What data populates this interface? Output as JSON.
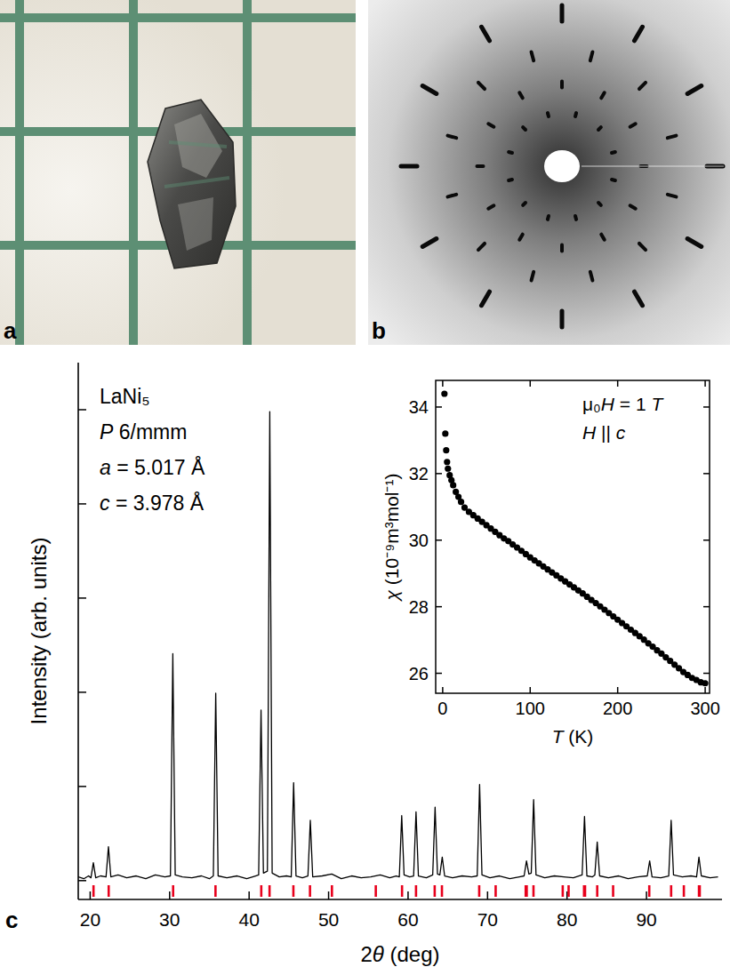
{
  "panels": [
    {
      "label": "a"
    },
    {
      "label": "b"
    }
  ],
  "chart_data": [
    {
      "type": "line",
      "panel_label": "c",
      "x_label": "2θ (deg)",
      "y_label": "Intensity (arb. units)",
      "annotations": [
        "LaNi₅",
        "P 6/mmm",
        "a = 5.017 Å",
        "c = 3.978 Å"
      ],
      "xlim": [
        18.5,
        99.5
      ],
      "xticks": [
        20,
        30,
        40,
        50,
        60,
        70,
        80,
        90
      ],
      "ylim": [
        -0.2,
        5.5
      ],
      "yticks": [
        0,
        1,
        2,
        3,
        4,
        5
      ],
      "tick_labels": "x",
      "series": [
        {
          "type": "line",
          "color": "#000000",
          "x": [
            18.5,
            19.2,
            19.8,
            20.1,
            20.4,
            20.7,
            21.3,
            22.0,
            22.3,
            22.6,
            23.5,
            24.6,
            25.8,
            27.0,
            28.2,
            29.4,
            30.1,
            30.4,
            30.7,
            31.6,
            32.8,
            34.0,
            35.0,
            35.5,
            35.8,
            36.1,
            37.2,
            38.5,
            39.7,
            40.8,
            41.2,
            41.5,
            41.8,
            42.3,
            42.6,
            42.9,
            43.8,
            44.7,
            45.3,
            45.6,
            45.9,
            46.7,
            47.4,
            47.7,
            48.0,
            49.2,
            50.4,
            51.6,
            52.9,
            54.1,
            55.3,
            56.5,
            57.7,
            58.5,
            58.9,
            59.2,
            59.5,
            60.2,
            60.7,
            61.0,
            61.3,
            62.3,
            63.1,
            63.4,
            63.7,
            64.0,
            64.3,
            64.6,
            65.6,
            66.8,
            68.0,
            68.7,
            69.0,
            69.3,
            70.3,
            71.5,
            72.8,
            74.0,
            74.6,
            74.9,
            75.2,
            75.5,
            75.8,
            76.1,
            77.2,
            78.4,
            79.6,
            80.8,
            81.9,
            82.2,
            82.5,
            83.2,
            83.5,
            83.8,
            84.1,
            85.2,
            86.5,
            87.7,
            88.9,
            90.1,
            90.4,
            90.7,
            91.8,
            92.8,
            93.1,
            93.4,
            94.5,
            95.6,
            96.3,
            96.6,
            96.9,
            98.0,
            99.0
          ],
          "values": [
            0.04,
            0.02,
            0.05,
            0.03,
            0.19,
            0.03,
            0.05,
            0.04,
            0.36,
            0.04,
            0.06,
            0.03,
            0.05,
            0.02,
            0.06,
            0.04,
            0.05,
            2.41,
            0.06,
            0.04,
            0.03,
            0.05,
            0.02,
            0.05,
            1.99,
            0.05,
            0.03,
            0.05,
            0.02,
            0.05,
            0.06,
            1.81,
            0.08,
            0.1,
            4.98,
            0.08,
            0.04,
            0.05,
            0.04,
            1.04,
            0.05,
            0.03,
            0.05,
            0.64,
            0.04,
            0.05,
            0.07,
            0.02,
            0.05,
            0.03,
            0.04,
            0.06,
            0.03,
            0.05,
            0.04,
            0.69,
            0.06,
            0.04,
            0.05,
            0.73,
            0.05,
            0.03,
            0.06,
            0.78,
            0.07,
            0.06,
            0.25,
            0.05,
            0.03,
            0.05,
            0.04,
            0.05,
            1.02,
            0.06,
            0.03,
            0.05,
            0.02,
            0.04,
            0.05,
            0.21,
            0.07,
            0.08,
            0.86,
            0.06,
            0.03,
            0.05,
            0.04,
            0.03,
            0.06,
            0.68,
            0.05,
            0.04,
            0.06,
            0.41,
            0.05,
            0.03,
            0.05,
            0.02,
            0.04,
            0.05,
            0.21,
            0.04,
            0.03,
            0.05,
            0.64,
            0.06,
            0.04,
            0.05,
            0.04,
            0.25,
            0.05,
            0.03,
            0.04
          ]
        }
      ],
      "reflections": {
        "color": "#e8001c",
        "marker": "tick",
        "x": [
          20.42,
          22.33,
          30.44,
          35.77,
          41.53,
          42.57,
          45.57,
          47.66,
          50.42,
          55.94,
          59.24,
          61.0,
          63.35,
          64.26,
          68.95,
          71.02,
          74.8,
          74.93,
          75.78,
          79.46,
          80.2,
          82.14,
          82.27,
          83.8,
          85.8,
          90.35,
          93.1,
          94.7,
          96.6,
          96.7
        ]
      }
    },
    {
      "type": "scatter",
      "x_label": "T (K)",
      "y_label": "χ (10⁻⁹m³mol⁻¹)",
      "annotations": [
        "μ₀H = 1 T",
        "H || c"
      ],
      "xlim": [
        -8,
        305
      ],
      "xticks": [
        0,
        100,
        200,
        300
      ],
      "ylim": [
        25.4,
        34.8
      ],
      "yticks": [
        26,
        28,
        30,
        32,
        34
      ],
      "series": [
        {
          "type": "scatter",
          "color": "#000000",
          "marker": "circle",
          "x": [
            2,
            3,
            4,
            5,
            6,
            8,
            10,
            12,
            15,
            18,
            21,
            25,
            30,
            35,
            40,
            45,
            50,
            55,
            60,
            65,
            70,
            75,
            80,
            85,
            90,
            95,
            100,
            105,
            110,
            115,
            120,
            125,
            130,
            135,
            140,
            145,
            150,
            155,
            160,
            165,
            170,
            175,
            180,
            185,
            190,
            195,
            200,
            205,
            210,
            215,
            220,
            225,
            230,
            235,
            240,
            245,
            250,
            255,
            260,
            265,
            270,
            275,
            280,
            285,
            290,
            295,
            300
          ],
          "values": [
            34.4,
            33.2,
            32.7,
            32.35,
            32.15,
            31.95,
            31.8,
            31.65,
            31.45,
            31.3,
            31.15,
            30.98,
            30.85,
            30.75,
            30.65,
            30.55,
            30.45,
            30.35,
            30.25,
            30.15,
            30.05,
            29.97,
            29.87,
            29.78,
            29.68,
            29.58,
            29.48,
            29.39,
            29.3,
            29.21,
            29.12,
            29.03,
            28.94,
            28.85,
            28.76,
            28.67,
            28.58,
            28.49,
            28.4,
            28.3,
            28.2,
            28.11,
            28.01,
            27.91,
            27.81,
            27.71,
            27.61,
            27.51,
            27.41,
            27.31,
            27.21,
            27.11,
            27.01,
            26.9,
            26.8,
            26.69,
            26.59,
            26.48,
            26.37,
            26.26,
            26.15,
            26.04,
            25.95,
            25.86,
            25.8,
            25.73,
            25.7
          ]
        }
      ]
    }
  ]
}
